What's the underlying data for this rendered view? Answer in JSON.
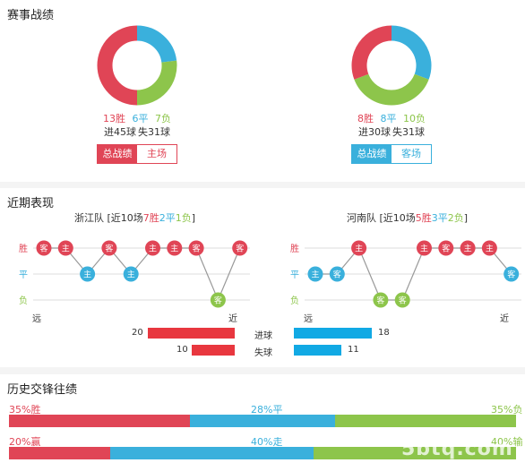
{
  "colors": {
    "win": "#e04556",
    "draw": "#3ab0dc",
    "loss": "#8dc54b",
    "grid": "#dddddd",
    "bar_red": "#e8373f",
    "bar_blue": "#11a9e4"
  },
  "section1": {
    "title": "赛事战绩",
    "left": {
      "wins": "13胜",
      "draws": "6平",
      "losses": "7负",
      "win_n": 13,
      "draw_n": 6,
      "loss_n": 7,
      "goals_for": "进45球",
      "goals_against": "失31球",
      "btn_total": "总战绩",
      "btn_home": "主场"
    },
    "right": {
      "wins": "8胜",
      "draws": "8平",
      "losses": "10负",
      "win_n": 8,
      "draw_n": 8,
      "loss_n": 10,
      "goals_for": "进30球",
      "goals_against": "失31球",
      "btn_total": "总战绩",
      "btn_away": "客场"
    }
  },
  "section2": {
    "title": "近期表现",
    "left_team": {
      "name": "浙江队",
      "prefix": " [近10场",
      "w": "7胜",
      "d": "2平",
      "l": "1负",
      "suffix": "]",
      "games": [
        {
          "r": "W",
          "t": "客"
        },
        {
          "r": "W",
          "t": "主"
        },
        {
          "r": "D",
          "t": "主"
        },
        {
          "r": "W",
          "t": "客"
        },
        {
          "r": "D",
          "t": "主"
        },
        {
          "r": "W",
          "t": "主"
        },
        {
          "r": "W",
          "t": "主"
        },
        {
          "r": "W",
          "t": "客"
        },
        {
          "r": "L",
          "t": "客"
        },
        {
          "r": "W",
          "t": "客"
        }
      ]
    },
    "right_team": {
      "name": "河南队",
      "prefix": " [近10场",
      "w": "5胜",
      "d": "3平",
      "l": "2负",
      "suffix": "]",
      "games": [
        {
          "r": "D",
          "t": "主"
        },
        {
          "r": "D",
          "t": "客"
        },
        {
          "r": "W",
          "t": "主"
        },
        {
          "r": "L",
          "t": "客"
        },
        {
          "r": "L",
          "t": "客"
        },
        {
          "r": "W",
          "t": "主"
        },
        {
          "r": "W",
          "t": "客"
        },
        {
          "r": "W",
          "t": "主"
        },
        {
          "r": "W",
          "t": "主"
        },
        {
          "r": "D",
          "t": "客"
        }
      ]
    },
    "axis": {
      "win": "胜",
      "draw": "平",
      "loss": "负",
      "far": "远",
      "near": "近"
    },
    "goals": {
      "scored_label": "进球",
      "conceded_label": "失球",
      "left_scored": 20,
      "right_scored": 18,
      "left_conceded": 10,
      "right_conceded": 11
    }
  },
  "section3": {
    "title": "历史交锋往绩",
    "row1": {
      "left": "35%胜",
      "mid": "28%平",
      "right": "35%负",
      "a": 35,
      "b": 28,
      "c": 35
    },
    "row2": {
      "left": "20%赢",
      "mid": "40%走",
      "right": "40%输",
      "a": 20,
      "b": 40,
      "c": 40
    }
  },
  "watermark": "5btq.com"
}
